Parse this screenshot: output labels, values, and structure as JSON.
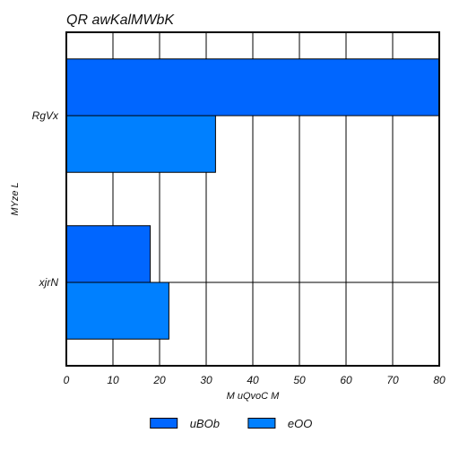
{
  "chart_data": {
    "type": "bar",
    "orientation": "horizontal",
    "title": "QR awKalMWbK",
    "xlabel": "M uQvoC M",
    "ylabel": "MYze L",
    "categories": [
      "RgVx",
      "xjrN"
    ],
    "series": [
      {
        "name": "uBOb",
        "values": [
          80,
          18
        ],
        "color": "#0066ff"
      },
      {
        "name": "eOO",
        "values": [
          32,
          22
        ],
        "color": "#0080ff"
      }
    ],
    "xlim": [
      0,
      80
    ],
    "xticks": [
      0,
      10,
      20,
      30,
      40,
      50,
      60,
      70,
      80
    ],
    "grid": true,
    "legend_position": "bottom"
  }
}
